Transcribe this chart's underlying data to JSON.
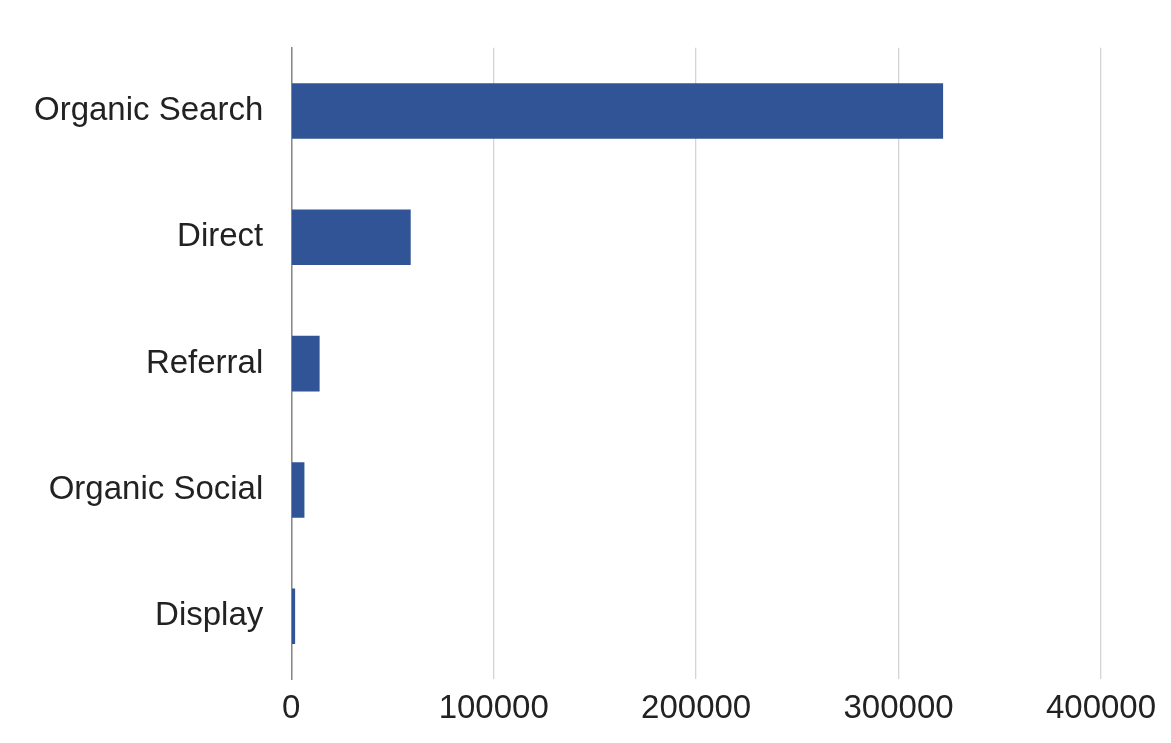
{
  "chart_data": {
    "type": "bar",
    "orientation": "horizontal",
    "categories": [
      "Organic Search",
      "Direct",
      "Referral",
      "Organic Social",
      "Display"
    ],
    "values": [
      322000,
      59000,
      14000,
      6500,
      1900
    ],
    "color": "#305496",
    "xlim": [
      0,
      400000
    ],
    "xticks": [
      0,
      100000,
      200000,
      300000,
      400000
    ],
    "grid": "x",
    "legend": false
  }
}
